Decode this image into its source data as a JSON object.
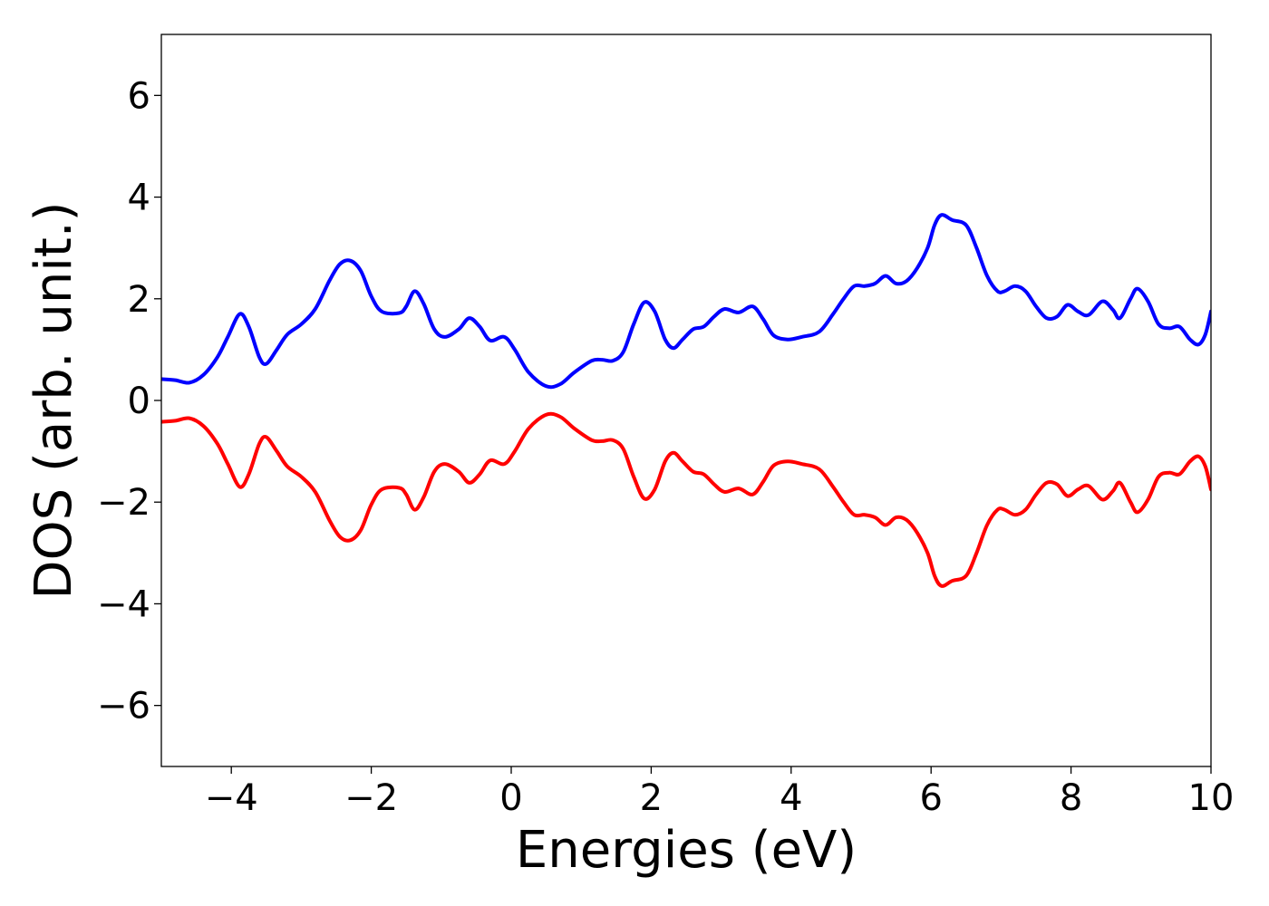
{
  "chart_data": {
    "type": "line",
    "title": "",
    "xlabel": "Energies (eV)",
    "ylabel": "DOS (arb. unit.)",
    "xlim": [
      -5,
      10
    ],
    "ylim": [
      -7.2,
      7.2
    ],
    "xticks": [
      -4,
      -2,
      0,
      2,
      4,
      6,
      8,
      10
    ],
    "xtick_labels": [
      "−4",
      "−2",
      "0",
      "2",
      "4",
      "6",
      "8",
      "10"
    ],
    "yticks": [
      -6,
      -4,
      -2,
      0,
      2,
      4,
      6
    ],
    "ytick_labels": [
      "−6",
      "−4",
      "−2",
      "0",
      "2",
      "4",
      "6"
    ],
    "grid": false,
    "legend": "none",
    "series": [
      {
        "color": "#0000ff",
        "points": [
          [
            -5.0,
            0.42
          ],
          [
            -4.8,
            0.4
          ],
          [
            -4.6,
            0.35
          ],
          [
            -4.4,
            0.5
          ],
          [
            -4.2,
            0.85
          ],
          [
            -4.05,
            1.25
          ],
          [
            -3.88,
            1.7
          ],
          [
            -3.75,
            1.45
          ],
          [
            -3.6,
            0.85
          ],
          [
            -3.5,
            0.72
          ],
          [
            -3.35,
            1.0
          ],
          [
            -3.2,
            1.3
          ],
          [
            -3.0,
            1.5
          ],
          [
            -2.8,
            1.8
          ],
          [
            -2.6,
            2.35
          ],
          [
            -2.45,
            2.68
          ],
          [
            -2.3,
            2.75
          ],
          [
            -2.15,
            2.55
          ],
          [
            -2.0,
            2.05
          ],
          [
            -1.85,
            1.75
          ],
          [
            -1.6,
            1.72
          ],
          [
            -1.5,
            1.85
          ],
          [
            -1.38,
            2.15
          ],
          [
            -1.25,
            1.9
          ],
          [
            -1.1,
            1.4
          ],
          [
            -0.95,
            1.25
          ],
          [
            -0.75,
            1.4
          ],
          [
            -0.6,
            1.62
          ],
          [
            -0.45,
            1.45
          ],
          [
            -0.3,
            1.18
          ],
          [
            -0.1,
            1.25
          ],
          [
            0.05,
            1.0
          ],
          [
            0.25,
            0.55
          ],
          [
            0.5,
            0.28
          ],
          [
            0.7,
            0.32
          ],
          [
            0.9,
            0.55
          ],
          [
            1.15,
            0.78
          ],
          [
            1.3,
            0.8
          ],
          [
            1.45,
            0.78
          ],
          [
            1.6,
            0.95
          ],
          [
            1.75,
            1.5
          ],
          [
            1.9,
            1.93
          ],
          [
            2.05,
            1.75
          ],
          [
            2.2,
            1.2
          ],
          [
            2.32,
            1.03
          ],
          [
            2.45,
            1.2
          ],
          [
            2.6,
            1.4
          ],
          [
            2.75,
            1.45
          ],
          [
            2.9,
            1.65
          ],
          [
            3.05,
            1.8
          ],
          [
            3.25,
            1.73
          ],
          [
            3.45,
            1.85
          ],
          [
            3.6,
            1.6
          ],
          [
            3.75,
            1.28
          ],
          [
            3.95,
            1.2
          ],
          [
            4.15,
            1.25
          ],
          [
            4.4,
            1.35
          ],
          [
            4.6,
            1.7
          ],
          [
            4.75,
            2.0
          ],
          [
            4.9,
            2.25
          ],
          [
            5.05,
            2.25
          ],
          [
            5.2,
            2.3
          ],
          [
            5.35,
            2.45
          ],
          [
            5.5,
            2.3
          ],
          [
            5.65,
            2.35
          ],
          [
            5.8,
            2.6
          ],
          [
            5.95,
            3.0
          ],
          [
            6.05,
            3.45
          ],
          [
            6.15,
            3.65
          ],
          [
            6.3,
            3.55
          ],
          [
            6.5,
            3.45
          ],
          [
            6.65,
            3.0
          ],
          [
            6.8,
            2.45
          ],
          [
            6.95,
            2.15
          ],
          [
            7.05,
            2.15
          ],
          [
            7.2,
            2.25
          ],
          [
            7.35,
            2.15
          ],
          [
            7.5,
            1.85
          ],
          [
            7.65,
            1.62
          ],
          [
            7.8,
            1.65
          ],
          [
            7.95,
            1.88
          ],
          [
            8.1,
            1.75
          ],
          [
            8.25,
            1.68
          ],
          [
            8.45,
            1.95
          ],
          [
            8.6,
            1.78
          ],
          [
            8.7,
            1.62
          ],
          [
            8.85,
            2.0
          ],
          [
            8.95,
            2.2
          ],
          [
            9.1,
            1.95
          ],
          [
            9.25,
            1.5
          ],
          [
            9.4,
            1.42
          ],
          [
            9.55,
            1.45
          ],
          [
            9.7,
            1.2
          ],
          [
            9.82,
            1.1
          ],
          [
            9.92,
            1.3
          ],
          [
            10.0,
            1.75
          ]
        ]
      },
      {
        "color": "#ff0000",
        "points": [
          [
            -5.0,
            -0.42
          ],
          [
            -4.8,
            -0.4
          ],
          [
            -4.6,
            -0.35
          ],
          [
            -4.4,
            -0.5
          ],
          [
            -4.2,
            -0.85
          ],
          [
            -4.05,
            -1.25
          ],
          [
            -3.88,
            -1.7
          ],
          [
            -3.75,
            -1.45
          ],
          [
            -3.6,
            -0.85
          ],
          [
            -3.5,
            -0.72
          ],
          [
            -3.35,
            -1.0
          ],
          [
            -3.2,
            -1.3
          ],
          [
            -3.0,
            -1.5
          ],
          [
            -2.8,
            -1.8
          ],
          [
            -2.6,
            -2.35
          ],
          [
            -2.45,
            -2.68
          ],
          [
            -2.3,
            -2.75
          ],
          [
            -2.15,
            -2.55
          ],
          [
            -2.0,
            -2.05
          ],
          [
            -1.85,
            -1.75
          ],
          [
            -1.6,
            -1.72
          ],
          [
            -1.5,
            -1.85
          ],
          [
            -1.38,
            -2.15
          ],
          [
            -1.25,
            -1.9
          ],
          [
            -1.1,
            -1.4
          ],
          [
            -0.95,
            -1.25
          ],
          [
            -0.75,
            -1.4
          ],
          [
            -0.6,
            -1.62
          ],
          [
            -0.45,
            -1.45
          ],
          [
            -0.3,
            -1.18
          ],
          [
            -0.1,
            -1.25
          ],
          [
            0.05,
            -1.0
          ],
          [
            0.25,
            -0.55
          ],
          [
            0.5,
            -0.28
          ],
          [
            0.7,
            -0.32
          ],
          [
            0.9,
            -0.55
          ],
          [
            1.15,
            -0.78
          ],
          [
            1.3,
            -0.8
          ],
          [
            1.45,
            -0.78
          ],
          [
            1.6,
            -0.95
          ],
          [
            1.75,
            -1.5
          ],
          [
            1.9,
            -1.93
          ],
          [
            2.05,
            -1.75
          ],
          [
            2.2,
            -1.2
          ],
          [
            2.32,
            -1.03
          ],
          [
            2.45,
            -1.2
          ],
          [
            2.6,
            -1.4
          ],
          [
            2.75,
            -1.45
          ],
          [
            2.9,
            -1.65
          ],
          [
            3.05,
            -1.8
          ],
          [
            3.25,
            -1.73
          ],
          [
            3.45,
            -1.85
          ],
          [
            3.6,
            -1.6
          ],
          [
            3.75,
            -1.28
          ],
          [
            3.95,
            -1.2
          ],
          [
            4.15,
            -1.25
          ],
          [
            4.4,
            -1.35
          ],
          [
            4.6,
            -1.7
          ],
          [
            4.75,
            -2.0
          ],
          [
            4.9,
            -2.25
          ],
          [
            5.05,
            -2.25
          ],
          [
            5.2,
            -2.3
          ],
          [
            5.35,
            -2.45
          ],
          [
            5.5,
            -2.3
          ],
          [
            5.65,
            -2.35
          ],
          [
            5.8,
            -2.6
          ],
          [
            5.95,
            -3.0
          ],
          [
            6.05,
            -3.45
          ],
          [
            6.15,
            -3.65
          ],
          [
            6.3,
            -3.55
          ],
          [
            6.5,
            -3.45
          ],
          [
            6.65,
            -3.0
          ],
          [
            6.8,
            -2.45
          ],
          [
            6.95,
            -2.15
          ],
          [
            7.05,
            -2.15
          ],
          [
            7.2,
            -2.25
          ],
          [
            7.35,
            -2.15
          ],
          [
            7.5,
            -1.85
          ],
          [
            7.65,
            -1.62
          ],
          [
            7.8,
            -1.65
          ],
          [
            7.95,
            -1.88
          ],
          [
            8.1,
            -1.75
          ],
          [
            8.25,
            -1.68
          ],
          [
            8.45,
            -1.95
          ],
          [
            8.6,
            -1.78
          ],
          [
            8.7,
            -1.62
          ],
          [
            8.85,
            -2.0
          ],
          [
            8.95,
            -2.2
          ],
          [
            9.1,
            -1.95
          ],
          [
            9.25,
            -1.5
          ],
          [
            9.4,
            -1.42
          ],
          [
            9.55,
            -1.45
          ],
          [
            9.7,
            -1.2
          ],
          [
            9.82,
            -1.1
          ],
          [
            9.92,
            -1.3
          ],
          [
            10.0,
            -1.75
          ]
        ]
      }
    ]
  }
}
